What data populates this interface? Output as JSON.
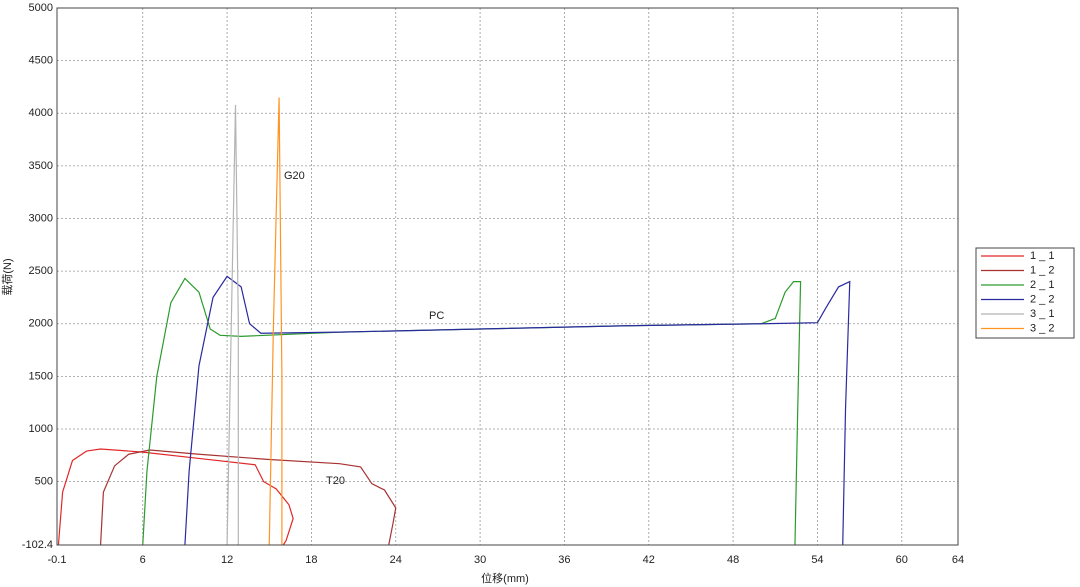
{
  "chart_data": {
    "type": "line",
    "x_label": "位移(mm)",
    "y_label": "载荷(N)",
    "annotations": [
      "G20",
      "PC",
      "T20"
    ],
    "xlim": [
      -0.1,
      64
    ],
    "xticks": [
      -0.1,
      6,
      12,
      18,
      24,
      30,
      36,
      42,
      48,
      54,
      60,
      64
    ],
    "ylim": [
      -102.4,
      5000
    ],
    "yticks": [
      -102.4,
      500,
      1000,
      1500,
      2000,
      2500,
      3000,
      3500,
      4000,
      4500,
      5000
    ],
    "grid": true,
    "legend": "right",
    "series": [
      {
        "name": "1 _ 1",
        "color": "#e02828",
        "x": [
          0,
          0.3,
          1,
          2,
          3,
          6,
          10,
          14,
          14.6,
          15.5,
          16.4,
          16.7,
          16.2,
          16
        ],
        "values": [
          -102.4,
          400,
          700,
          790,
          810,
          780,
          720,
          660,
          500,
          430,
          280,
          150,
          -60,
          -102.4
        ]
      },
      {
        "name": "1 _ 2",
        "color": "#a83232",
        "x": [
          3,
          3.2,
          4,
          5,
          6.5,
          10,
          15,
          20,
          21.5,
          22.3,
          23.2,
          24,
          23.8,
          23.5
        ],
        "values": [
          -102.4,
          400,
          650,
          760,
          800,
          760,
          710,
          670,
          640,
          480,
          420,
          250,
          100,
          -102.4
        ]
      },
      {
        "name": "2 _ 1",
        "color": "#2c9a2c",
        "x": [
          6,
          6.3,
          7,
          8,
          9,
          10,
          10.8,
          11.5,
          13,
          20,
          30,
          40,
          50,
          51,
          51.7,
          52.3,
          52.8,
          52.6,
          52.4
        ],
        "values": [
          -102.4,
          600,
          1500,
          2200,
          2430,
          2300,
          1950,
          1890,
          1880,
          1920,
          1950,
          1980,
          2000,
          2050,
          2300,
          2400,
          2400,
          1200,
          -102.4
        ]
      },
      {
        "name": "2 _ 2",
        "color": "#2a2aa0",
        "x": [
          9,
          9.3,
          10,
          11,
          12,
          13,
          13.6,
          14.4,
          20,
          30,
          40,
          50,
          54,
          54.6,
          55.5,
          56.3,
          56,
          55.8
        ],
        "values": [
          -102.4,
          600,
          1600,
          2250,
          2450,
          2350,
          2000,
          1910,
          1920,
          1950,
          1980,
          2000,
          2010,
          2150,
          2350,
          2400,
          1200,
          -102.4
        ]
      },
      {
        "name": "3 _ 1",
        "color": "#b4b4b4",
        "x": [
          12,
          12.3,
          12.6,
          12.8,
          12.8
        ],
        "values": [
          -102.4,
          2000,
          4080,
          2000,
          -102.4
        ]
      },
      {
        "name": "3 _ 2",
        "color": "#ff9422",
        "x": [
          15,
          15.3,
          15.7,
          15.9,
          15.9
        ],
        "values": [
          -102.4,
          2000,
          4150,
          1500,
          -102.4
        ]
      }
    ]
  }
}
